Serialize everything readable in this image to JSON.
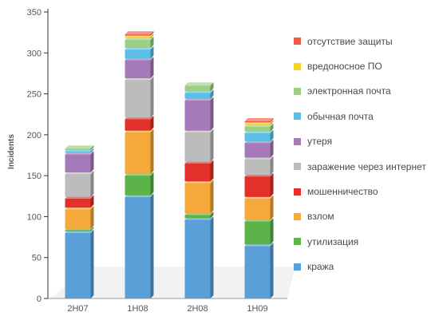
{
  "chart_data": {
    "type": "bar",
    "stacked": true,
    "categories": [
      "2Н07",
      "1Н08",
      "2Н08",
      "1Н09"
    ],
    "ylabel": "Incidents",
    "ylim": [
      0,
      350
    ],
    "yticks": [
      0,
      50,
      100,
      150,
      200,
      250,
      300,
      350
    ],
    "legend_position": "right",
    "series": [
      {
        "name": "кража",
        "color": "#5aa0d8",
        "values": [
          82,
          126,
          98,
          66
        ]
      },
      {
        "name": "утилизация",
        "color": "#5cb34a",
        "values": [
          3,
          26,
          6,
          30
        ]
      },
      {
        "name": "взлом",
        "color": "#f5a93a",
        "values": [
          26,
          53,
          39,
          28
        ]
      },
      {
        "name": "мошенничество",
        "color": "#e3302a",
        "values": [
          13,
          16,
          24,
          27
        ]
      },
      {
        "name": "заражение через интернет",
        "color": "#bcbcbc",
        "values": [
          30,
          48,
          38,
          21
        ]
      },
      {
        "name": "утеря",
        "color": "#a67ab8",
        "values": [
          24,
          24,
          39,
          20
        ]
      },
      {
        "name": "обычная почта",
        "color": "#5bbfea",
        "values": [
          3,
          13,
          9,
          12
        ]
      },
      {
        "name": "электронная почта",
        "color": "#9dcf84",
        "values": [
          4,
          12,
          9,
          8
        ]
      },
      {
        "name": "вредоносное ПО",
        "color": "#f5d321",
        "values": [
          0,
          3,
          0,
          3
        ]
      },
      {
        "name": "отсутствие защиты",
        "color": "#ee5a45",
        "values": [
          0,
          3,
          0,
          3
        ]
      }
    ]
  }
}
